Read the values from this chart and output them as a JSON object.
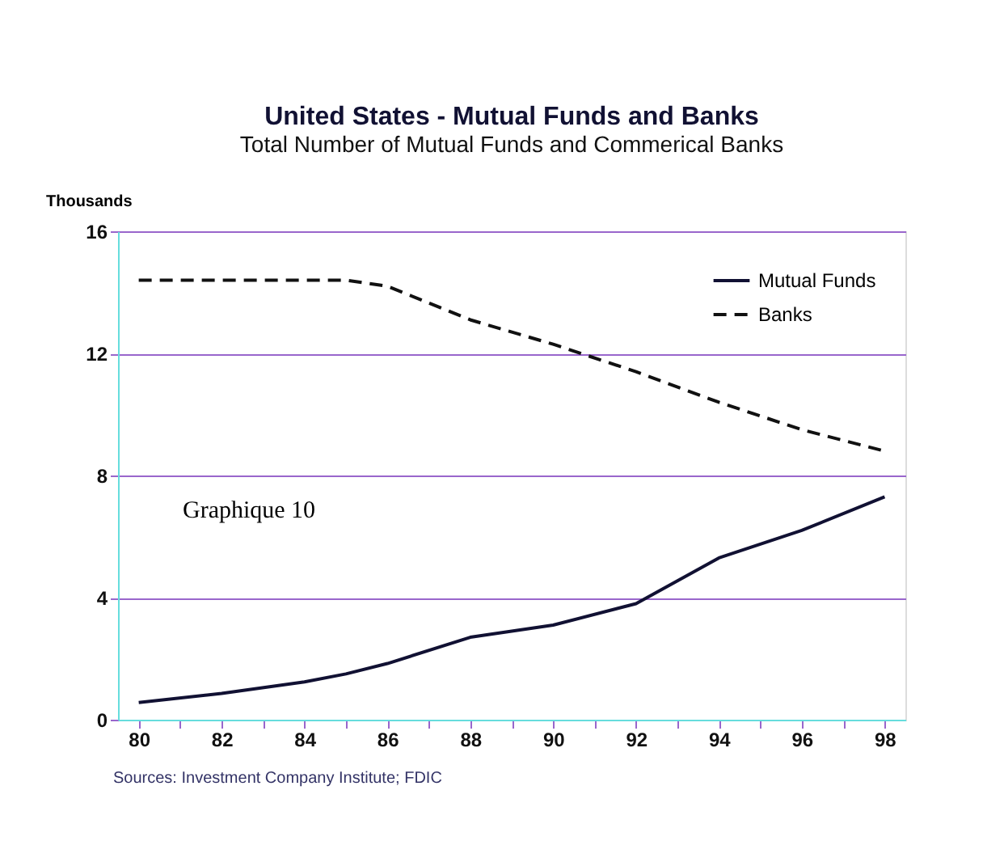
{
  "chart_data": {
    "type": "line",
    "title": "United States - Mutual Funds and Banks",
    "subtitle": "Total Number of Mutual Funds and Commerical Banks",
    "ylabel": "Thousands",
    "x": [
      80,
      82,
      84,
      85,
      86,
      88,
      90,
      92,
      94,
      96,
      98
    ],
    "series": [
      {
        "name": "Mutual Funds",
        "color": "#111133",
        "line_style": "solid",
        "values": [
          0.56,
          0.86,
          1.24,
          1.5,
          1.84,
          2.7,
          3.1,
          3.8,
          5.3,
          6.2,
          7.3
        ]
      },
      {
        "name": "Banks",
        "color": "#111111",
        "line_style": "dashed",
        "values": [
          14.4,
          14.4,
          14.4,
          14.4,
          14.2,
          13.1,
          12.3,
          11.4,
          10.4,
          9.5,
          8.8
        ]
      }
    ],
    "xlim": [
      79.5,
      98.5
    ],
    "xticks": [
      80,
      {
        "value": 81,
        "label": null
      },
      82,
      {
        "value": 83,
        "label": null
      },
      84,
      {
        "value": 85,
        "label": null
      },
      86,
      {
        "value": 87,
        "label": null
      },
      88,
      {
        "value": 89,
        "label": null
      },
      90,
      {
        "value": 91,
        "label": null
      },
      92,
      {
        "value": 93,
        "label": null
      },
      94,
      {
        "value": 95,
        "label": null
      },
      96,
      {
        "value": 97,
        "label": null
      },
      98
    ],
    "ylim": [
      0,
      16
    ],
    "yticks": [
      0,
      4,
      8,
      12,
      16
    ],
    "grid": "y",
    "legend": "top right",
    "annotations": [
      "Graphique 10",
      "Sources:  Investment Company Institute; FDIC"
    ]
  }
}
